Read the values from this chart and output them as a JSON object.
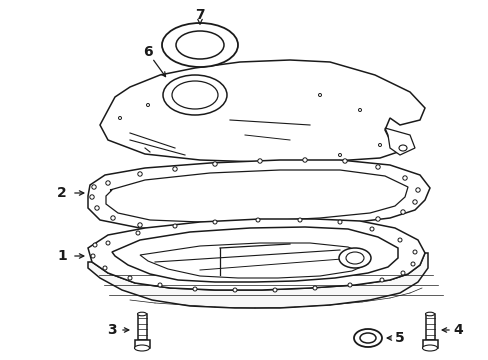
{
  "bg_color": "#ffffff",
  "line_color": "#1a1a1a",
  "line_width": 1.1,
  "fig_w": 4.89,
  "fig_h": 3.6,
  "dpi": 100
}
